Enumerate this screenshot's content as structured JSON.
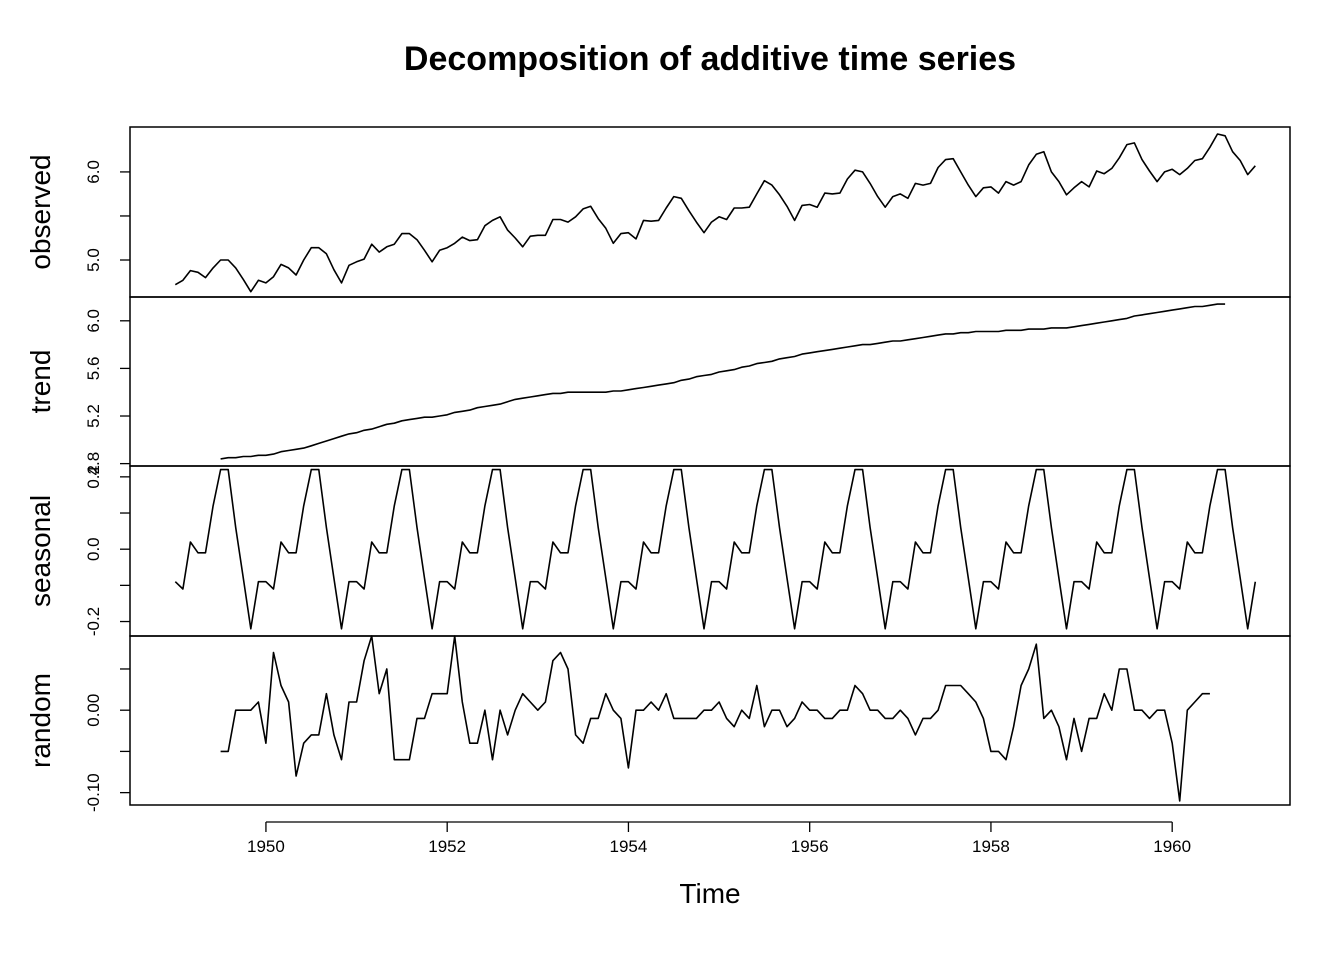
{
  "chart_data": {
    "type": "line",
    "title": "Decomposition of additive time series",
    "xlabel": "Time",
    "xlim": [
      1948.5,
      1961.3
    ],
    "xticks": [
      1950,
      1952,
      1954,
      1956,
      1958,
      1960
    ],
    "time_start": 1949,
    "frequency": 12,
    "panels": [
      {
        "name": "observed",
        "ylim": [
          4.58,
          6.51
        ],
        "yticks": [
          5.0,
          5.5,
          6.0
        ],
        "ytick_labels": [
          "5.0",
          "",
          "6.0"
        ],
        "values": [
          4.72,
          4.77,
          4.88,
          4.86,
          4.8,
          4.91,
          5.0,
          5.0,
          4.91,
          4.78,
          4.64,
          4.77,
          4.74,
          4.81,
          4.95,
          4.91,
          4.83,
          5.0,
          5.14,
          5.14,
          5.07,
          4.89,
          4.74,
          4.94,
          4.98,
          5.01,
          5.18,
          5.09,
          5.15,
          5.18,
          5.3,
          5.3,
          5.23,
          5.11,
          4.98,
          5.11,
          5.14,
          5.19,
          5.26,
          5.22,
          5.23,
          5.39,
          5.45,
          5.49,
          5.34,
          5.25,
          5.15,
          5.27,
          5.28,
          5.28,
          5.46,
          5.46,
          5.43,
          5.49,
          5.58,
          5.61,
          5.47,
          5.36,
          5.19,
          5.3,
          5.31,
          5.24,
          5.45,
          5.44,
          5.45,
          5.59,
          5.72,
          5.7,
          5.56,
          5.43,
          5.31,
          5.43,
          5.49,
          5.46,
          5.59,
          5.59,
          5.6,
          5.75,
          5.9,
          5.85,
          5.74,
          5.61,
          5.45,
          5.62,
          5.63,
          5.6,
          5.76,
          5.75,
          5.76,
          5.92,
          6.02,
          6.0,
          5.87,
          5.72,
          5.6,
          5.72,
          5.75,
          5.7,
          5.87,
          5.85,
          5.87,
          6.05,
          6.14,
          6.15,
          6.0,
          5.85,
          5.72,
          5.82,
          5.83,
          5.76,
          5.89,
          5.85,
          5.89,
          6.08,
          6.2,
          6.23,
          6.0,
          5.89,
          5.74,
          5.82,
          5.89,
          5.83,
          6.01,
          5.98,
          6.04,
          6.16,
          6.31,
          6.33,
          6.14,
          6.01,
          5.89,
          6.0,
          6.03,
          5.97,
          6.04,
          6.13,
          6.15,
          6.28,
          6.43,
          6.41,
          6.23,
          6.13,
          5.97,
          6.07
        ]
      },
      {
        "name": "trend",
        "ylim": [
          4.78,
          6.2
        ],
        "yticks": [
          4.8,
          5.2,
          5.6,
          6.0
        ],
        "ytick_labels": [
          "4.8",
          "5.2",
          "5.6",
          "6.0"
        ],
        "values": [
          null,
          null,
          null,
          null,
          null,
          null,
          4.84,
          4.85,
          4.85,
          4.86,
          4.86,
          4.87,
          4.87,
          4.88,
          4.9,
          4.91,
          4.92,
          4.93,
          4.95,
          4.97,
          4.99,
          5.01,
          5.03,
          5.05,
          5.06,
          5.08,
          5.09,
          5.11,
          5.13,
          5.14,
          5.16,
          5.17,
          5.18,
          5.19,
          5.19,
          5.2,
          5.21,
          5.23,
          5.24,
          5.25,
          5.27,
          5.28,
          5.29,
          5.3,
          5.32,
          5.34,
          5.35,
          5.36,
          5.37,
          5.38,
          5.39,
          5.39,
          5.4,
          5.4,
          5.4,
          5.4,
          5.4,
          5.4,
          5.41,
          5.41,
          5.42,
          5.43,
          5.44,
          5.45,
          5.46,
          5.47,
          5.48,
          5.5,
          5.51,
          5.53,
          5.54,
          5.55,
          5.57,
          5.58,
          5.59,
          5.61,
          5.62,
          5.64,
          5.65,
          5.66,
          5.68,
          5.69,
          5.7,
          5.72,
          5.73,
          5.74,
          5.75,
          5.76,
          5.77,
          5.78,
          5.79,
          5.8,
          5.8,
          5.81,
          5.82,
          5.83,
          5.83,
          5.84,
          5.85,
          5.86,
          5.87,
          5.88,
          5.89,
          5.89,
          5.9,
          5.9,
          5.91,
          5.91,
          5.91,
          5.91,
          5.92,
          5.92,
          5.92,
          5.93,
          5.93,
          5.93,
          5.94,
          5.94,
          5.94,
          5.95,
          5.96,
          5.97,
          5.98,
          5.99,
          6.0,
          6.01,
          6.02,
          6.04,
          6.05,
          6.06,
          6.07,
          6.08,
          6.09,
          6.1,
          6.11,
          6.12,
          6.12,
          6.13,
          6.14,
          6.14,
          null,
          null,
          null,
          null,
          null,
          null
        ]
      },
      {
        "name": "seasonal",
        "ylim": [
          -0.24,
          0.23
        ],
        "yticks": [
          -0.2,
          -0.1,
          0.0,
          0.1,
          0.2
        ],
        "ytick_labels": [
          "-0.2",
          "",
          "0.0",
          "",
          "0.2"
        ],
        "values": [
          -0.09,
          -0.11,
          0.02,
          -0.01,
          -0.01,
          0.12,
          0.22,
          0.22,
          0.06,
          -0.08,
          -0.22,
          -0.09
        ]
      },
      {
        "name": "random",
        "ylim": [
          -0.115,
          0.09
        ],
        "yticks": [
          -0.1,
          -0.05,
          0.0,
          0.05
        ],
        "ytick_labels": [
          "-0.10",
          "",
          "0.00",
          ""
        ],
        "values": [
          null,
          null,
          null,
          null,
          null,
          null,
          -0.05,
          -0.05,
          0.0,
          0.0,
          0.0,
          0.01,
          -0.04,
          0.07,
          0.03,
          0.01,
          -0.08,
          -0.04,
          -0.03,
          -0.03,
          0.02,
          -0.03,
          -0.06,
          0.01,
          0.01,
          0.06,
          0.09,
          0.02,
          0.05,
          -0.06,
          -0.06,
          -0.06,
          -0.01,
          -0.01,
          0.02,
          0.02,
          0.02,
          0.09,
          0.01,
          -0.04,
          -0.04,
          0.0,
          -0.06,
          0.0,
          -0.03,
          0.0,
          0.02,
          0.01,
          0.0,
          0.01,
          0.06,
          0.07,
          0.05,
          -0.03,
          -0.04,
          -0.01,
          -0.01,
          0.02,
          0.0,
          -0.01,
          -0.07,
          0.0,
          0.0,
          0.01,
          0.0,
          0.02,
          -0.01,
          -0.01,
          -0.01,
          -0.01,
          0.0,
          0.0,
          0.01,
          -0.01,
          -0.02,
          0.0,
          -0.01,
          0.03,
          -0.02,
          0.0,
          0.0,
          -0.02,
          -0.01,
          0.01,
          0.0,
          0.0,
          -0.01,
          -0.01,
          0.0,
          0.0,
          0.03,
          0.02,
          0.0,
          0.0,
          -0.01,
          -0.01,
          0.0,
          -0.01,
          -0.03,
          -0.01,
          -0.01,
          0.0,
          0.03,
          0.03,
          0.03,
          0.02,
          0.01,
          -0.01,
          -0.05,
          -0.05,
          -0.06,
          -0.02,
          0.03,
          0.05,
          0.08,
          -0.01,
          0.0,
          -0.02,
          -0.06,
          -0.01,
          -0.05,
          -0.01,
          -0.01,
          0.02,
          0.0,
          0.05,
          0.05,
          0.0,
          0.0,
          -0.01,
          0.0,
          0.0,
          -0.04,
          -0.11,
          0.0,
          0.01,
          0.02,
          0.02,
          null,
          null,
          null,
          null,
          null,
          null
        ]
      }
    ]
  }
}
